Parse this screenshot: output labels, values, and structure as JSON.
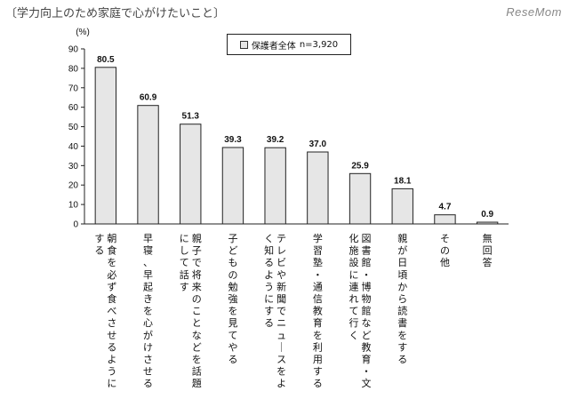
{
  "chart_data": {
    "type": "bar",
    "title": "〔学力向上のため家庭で心がけたいこと〕",
    "ylabel": "(%)",
    "ylim": [
      0,
      90
    ],
    "yticks": [
      0,
      10,
      20,
      30,
      40,
      50,
      60,
      70,
      80,
      90
    ],
    "legend": "top-center",
    "grid": false,
    "categories": [
      "朝食を必ず食べさせるようにする",
      "早寝、早起きを心がけさせる",
      "親子で将来のことなどを話題にして話す",
      "子どもの勉強を見てやる",
      "テレビや新聞でニュースをよく知るようにする",
      "学習塾・通信教育を利用する",
      "図書館・博物館など教育・文化施設に連れて行く",
      "親が日頃から読書をする",
      "その他",
      "無回答"
    ],
    "series": [
      {
        "name": "保護者全体",
        "count_label": "n=3,920",
        "values": [
          80.5,
          60.9,
          51.3,
          39.3,
          39.2,
          37.0,
          25.9,
          18.1,
          4.7,
          0.9
        ],
        "labels": [
          "80.5",
          "60.9",
          "51.3",
          "39.3",
          "39.2",
          "37.0",
          "25.9",
          "18.1",
          "4.7",
          "0.9"
        ],
        "color": "#e6e6e6",
        "edge_color": "#222222"
      }
    ]
  },
  "watermark": "ReseMom"
}
